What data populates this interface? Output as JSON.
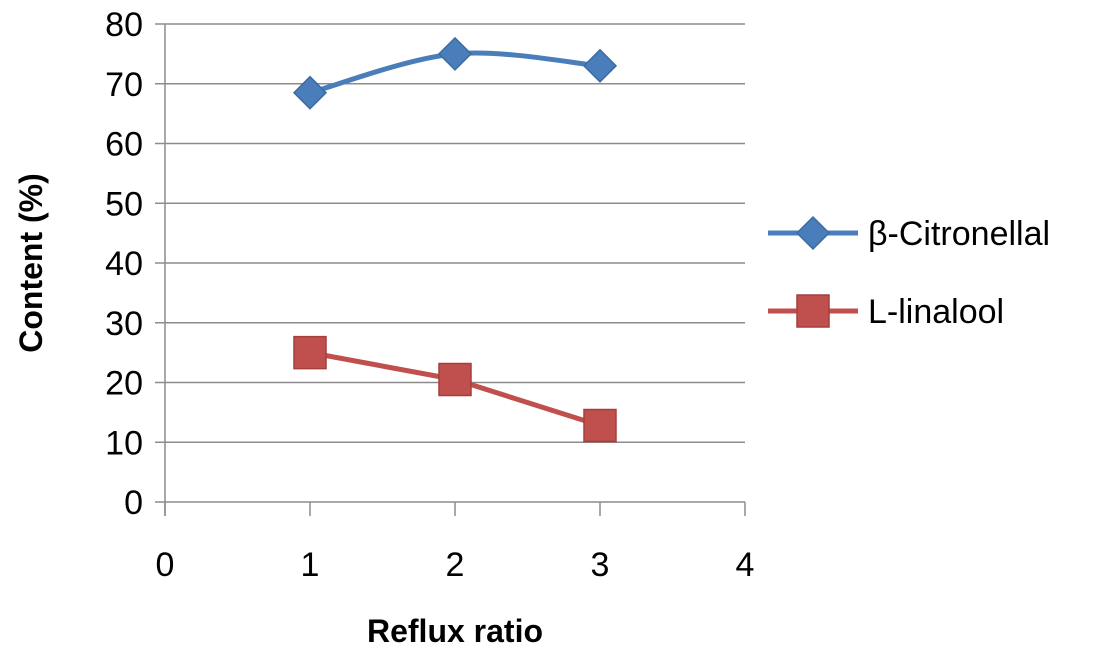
{
  "chart_data": {
    "type": "line",
    "title": "",
    "xlabel": "Reflux ratio",
    "ylabel": "Content (%)",
    "xlim": [
      0,
      4
    ],
    "ylim": [
      0,
      80
    ],
    "x_ticks": [
      0,
      1,
      2,
      3,
      4
    ],
    "y_ticks": [
      0,
      10,
      20,
      30,
      40,
      50,
      60,
      70,
      80
    ],
    "grid": "horizontal",
    "legend_position": "right",
    "series": [
      {
        "name": "β-Citronellal",
        "color": "#4a7ebb",
        "marker": "diamond",
        "x": [
          1,
          2,
          3
        ],
        "y": [
          68.5,
          75,
          73
        ]
      },
      {
        "name": "L-linalool",
        "color": "#c0504d",
        "marker": "square",
        "x": [
          1,
          2,
          3
        ],
        "y": [
          25,
          20.5,
          12.8
        ]
      }
    ]
  }
}
